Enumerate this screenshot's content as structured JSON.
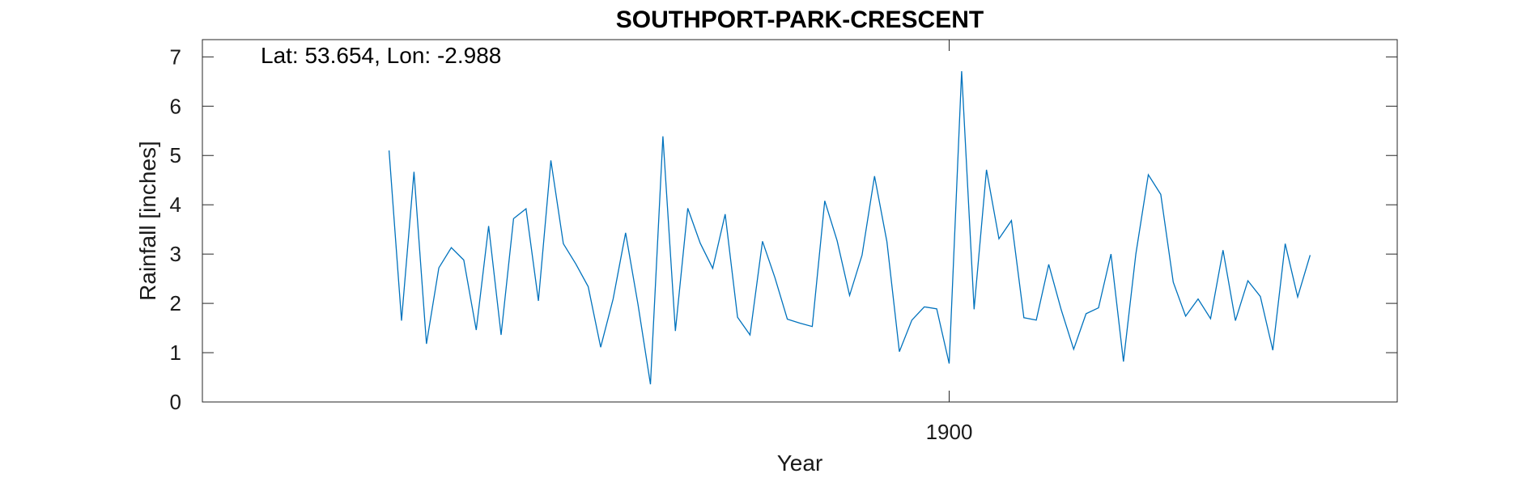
{
  "chart_data": {
    "type": "line",
    "title": "SOUTHPORT-PARK-CRESCENT",
    "annotation": "Lat: 53.654, Lon: -2.988",
    "xlabel": "Year",
    "ylabel": "Rainfall [inches]",
    "xlim": [
      1840,
      1936
    ],
    "ylim": [
      0,
      7.35
    ],
    "yticks": [
      0,
      1,
      2,
      3,
      4,
      5,
      6,
      7
    ],
    "xticks": [
      1900
    ],
    "grid": false,
    "line_color": "#0072BD",
    "x": [
      1855,
      1856,
      1857,
      1858,
      1859,
      1860,
      1861,
      1862,
      1863,
      1864,
      1865,
      1866,
      1867,
      1868,
      1869,
      1870,
      1871,
      1872,
      1873,
      1874,
      1875,
      1876,
      1877,
      1878,
      1879,
      1880,
      1881,
      1882,
      1883,
      1884,
      1885,
      1886,
      1887,
      1888,
      1889,
      1890,
      1891,
      1892,
      1893,
      1894,
      1895,
      1896,
      1897,
      1898,
      1899,
      1900,
      1901,
      1902,
      1903,
      1904,
      1905,
      1906,
      1907,
      1908,
      1909,
      1910,
      1911,
      1912,
      1913,
      1914,
      1915,
      1916,
      1917,
      1918,
      1919,
      1920,
      1921,
      1922,
      1923,
      1924,
      1925,
      1926,
      1927,
      1928,
      1929
    ],
    "values": [
      5.1,
      1.65,
      4.67,
      1.18,
      2.72,
      3.13,
      2.88,
      1.46,
      3.57,
      1.36,
      3.72,
      3.92,
      2.05,
      4.9,
      3.21,
      2.8,
      2.34,
      1.11,
      2.09,
      3.43,
      1.98,
      0.36,
      5.39,
      1.44,
      3.93,
      3.22,
      2.71,
      3.81,
      1.72,
      1.36,
      3.26,
      2.52,
      1.68,
      1.6,
      1.53,
      4.08,
      3.27,
      2.16,
      2.98,
      4.58,
      3.25,
      1.02,
      1.66,
      1.93,
      1.89,
      0.78,
      6.71,
      1.88,
      4.71,
      3.31,
      3.68,
      1.71,
      1.66,
      2.79,
      1.87,
      1.07,
      1.79,
      1.91,
      3.0,
      0.82,
      3.0,
      4.61,
      4.21,
      2.43,
      1.74,
      2.09,
      1.69,
      3.08,
      1.65,
      2.46,
      2.14,
      1.05,
      3.21,
      2.13,
      2.98
    ]
  }
}
